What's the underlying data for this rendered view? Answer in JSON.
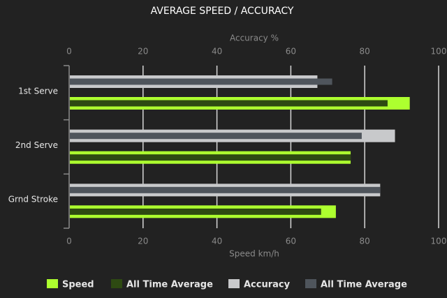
{
  "chart_data": {
    "type": "bar",
    "orientation": "horizontal",
    "title": "AVERAGE SPEED / ACCURACY",
    "xlabel": "Speed km/h",
    "x2label": "Accuracy %",
    "categories": [
      "1st Serve",
      "2nd Serve",
      "Grnd Stroke"
    ],
    "series": [
      {
        "name": "Speed",
        "color": "#adff2f",
        "values": [
          92,
          76,
          72
        ]
      },
      {
        "name": "All Time Average",
        "color": "#2e4a12",
        "values": [
          86,
          76,
          68
        ]
      },
      {
        "name": "Accuracy",
        "color": "#c8c9cb",
        "values": [
          67,
          88,
          84
        ],
        "axis": "x2"
      },
      {
        "name": "All Time Average",
        "color": "#4f555c",
        "values": [
          71,
          79,
          84
        ],
        "axis": "x2"
      }
    ],
    "xlim": [
      0,
      100
    ],
    "xticks": [
      0,
      20,
      40,
      60,
      80,
      100
    ],
    "x2lim": [
      0,
      100
    ],
    "x2ticks": [
      0,
      20,
      40,
      60,
      80,
      100
    ],
    "grid": true
  }
}
